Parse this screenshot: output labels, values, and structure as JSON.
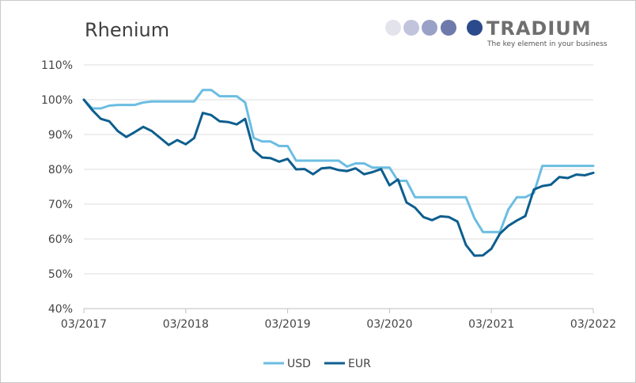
{
  "brand": {
    "name": "TRADIUM",
    "tagline": "The key element in your business",
    "dot_colors": [
      "#e3e3ec",
      "#c1c4dc",
      "#9aa1c6",
      "#6d7aaa"
    ],
    "main_dot_color": "#2b4a8b",
    "text_color": "#6f6f6f"
  },
  "chart_data": {
    "type": "line",
    "title": "Rhenium",
    "xlabel": "",
    "ylabel": "",
    "y_tick_labels": [
      "40%",
      "50%",
      "60%",
      "70%",
      "80%",
      "90%",
      "100%",
      "110%"
    ],
    "y_ticks": [
      40,
      50,
      60,
      70,
      80,
      90,
      100,
      110
    ],
    "ylim": [
      40,
      110
    ],
    "x_tick_labels": [
      "03/2017",
      "03/2018",
      "03/2019",
      "03/2020",
      "03/2021",
      "03/2022"
    ],
    "xlim": [
      "2017-03",
      "2022-03"
    ],
    "grid": true,
    "legend_position": "bottom",
    "series": [
      {
        "name": "USD",
        "color": "#6bbde2",
        "points": [
          [
            "2017-03",
            100
          ],
          [
            "2017-04",
            97.5
          ],
          [
            "2017-05",
            97.5
          ],
          [
            "2017-06",
            98.3
          ],
          [
            "2017-07",
            98.5
          ],
          [
            "2017-08",
            98.5
          ],
          [
            "2017-09",
            98.5
          ],
          [
            "2017-10",
            99.2
          ],
          [
            "2017-11",
            99.5
          ],
          [
            "2017-12",
            99.5
          ],
          [
            "2018-01",
            99.5
          ],
          [
            "2018-02",
            99.5
          ],
          [
            "2018-03",
            99.5
          ],
          [
            "2018-04",
            99.5
          ],
          [
            "2018-05",
            102.8
          ],
          [
            "2018-06",
            102.8
          ],
          [
            "2018-07",
            101
          ],
          [
            "2018-08",
            101
          ],
          [
            "2018-09",
            101
          ],
          [
            "2018-10",
            99.2
          ],
          [
            "2018-11",
            89
          ],
          [
            "2018-12",
            88
          ],
          [
            "2019-01",
            88
          ],
          [
            "2019-02",
            86.7
          ],
          [
            "2019-03",
            86.7
          ],
          [
            "2019-04",
            82.5
          ],
          [
            "2019-05",
            82.5
          ],
          [
            "2019-06",
            82.5
          ],
          [
            "2019-07",
            82.5
          ],
          [
            "2019-08",
            82.5
          ],
          [
            "2019-09",
            82.5
          ],
          [
            "2019-10",
            80.8
          ],
          [
            "2019-11",
            81.7
          ],
          [
            "2019-12",
            81.7
          ],
          [
            "2020-01",
            80.5
          ],
          [
            "2020-02",
            80.5
          ],
          [
            "2020-03",
            80.5
          ],
          [
            "2020-04",
            76.7
          ],
          [
            "2020-05",
            76.7
          ],
          [
            "2020-06",
            72
          ],
          [
            "2020-07",
            72
          ],
          [
            "2020-08",
            72
          ],
          [
            "2020-09",
            72
          ],
          [
            "2020-10",
            72
          ],
          [
            "2020-11",
            72
          ],
          [
            "2020-12",
            72
          ],
          [
            "2021-01",
            66
          ],
          [
            "2021-02",
            62
          ],
          [
            "2021-03",
            62
          ],
          [
            "2021-04",
            62
          ],
          [
            "2021-05",
            68.5
          ],
          [
            "2021-06",
            72
          ],
          [
            "2021-07",
            72
          ],
          [
            "2021-08",
            73.2
          ],
          [
            "2021-09",
            81
          ],
          [
            "2021-10",
            81
          ],
          [
            "2021-11",
            81
          ],
          [
            "2021-12",
            81
          ],
          [
            "2022-01",
            81
          ],
          [
            "2022-02",
            81
          ],
          [
            "2022-03",
            81
          ]
        ]
      },
      {
        "name": "EUR",
        "color": "#0d5e8e",
        "points": [
          [
            "2017-03",
            100
          ],
          [
            "2017-04",
            97
          ],
          [
            "2017-05",
            94.5
          ],
          [
            "2017-06",
            93.8
          ],
          [
            "2017-07",
            91
          ],
          [
            "2017-08",
            89.3
          ],
          [
            "2017-09",
            90.7
          ],
          [
            "2017-10",
            92.2
          ],
          [
            "2017-11",
            91
          ],
          [
            "2017-12",
            89
          ],
          [
            "2018-01",
            87
          ],
          [
            "2018-02",
            88.4
          ],
          [
            "2018-03",
            87.2
          ],
          [
            "2018-04",
            89
          ],
          [
            "2018-05",
            96.2
          ],
          [
            "2018-06",
            95.6
          ],
          [
            "2018-07",
            93.8
          ],
          [
            "2018-08",
            93.6
          ],
          [
            "2018-09",
            92.9
          ],
          [
            "2018-10",
            94.5
          ],
          [
            "2018-11",
            85.5
          ],
          [
            "2018-12",
            83.4
          ],
          [
            "2019-01",
            83.2
          ],
          [
            "2019-02",
            82.2
          ],
          [
            "2019-03",
            83
          ],
          [
            "2019-04",
            80
          ],
          [
            "2019-05",
            80.1
          ],
          [
            "2019-06",
            78.6
          ],
          [
            "2019-07",
            80.3
          ],
          [
            "2019-08",
            80.5
          ],
          [
            "2019-09",
            79.8
          ],
          [
            "2019-10",
            79.5
          ],
          [
            "2019-11",
            80.3
          ],
          [
            "2019-12",
            78.6
          ],
          [
            "2020-01",
            79.2
          ],
          [
            "2020-02",
            80.1
          ],
          [
            "2020-03",
            75.4
          ],
          [
            "2020-04",
            77.1
          ],
          [
            "2020-05",
            70.5
          ],
          [
            "2020-06",
            69
          ],
          [
            "2020-07",
            66.3
          ],
          [
            "2020-08",
            65.4
          ],
          [
            "2020-09",
            66.5
          ],
          [
            "2020-10",
            66.3
          ],
          [
            "2020-11",
            65
          ],
          [
            "2020-12",
            58.3
          ],
          [
            "2021-01",
            55.2
          ],
          [
            "2021-02",
            55.3
          ],
          [
            "2021-03",
            57.2
          ],
          [
            "2021-04",
            61.5
          ],
          [
            "2021-05",
            63.8
          ],
          [
            "2021-06",
            65.3
          ],
          [
            "2021-07",
            66.6
          ],
          [
            "2021-08",
            74.2
          ],
          [
            "2021-09",
            75.2
          ],
          [
            "2021-10",
            75.6
          ],
          [
            "2021-11",
            77.8
          ],
          [
            "2021-12",
            77.5
          ],
          [
            "2022-01",
            78.5
          ],
          [
            "2022-02",
            78.3
          ],
          [
            "2022-03",
            79
          ]
        ]
      }
    ]
  }
}
